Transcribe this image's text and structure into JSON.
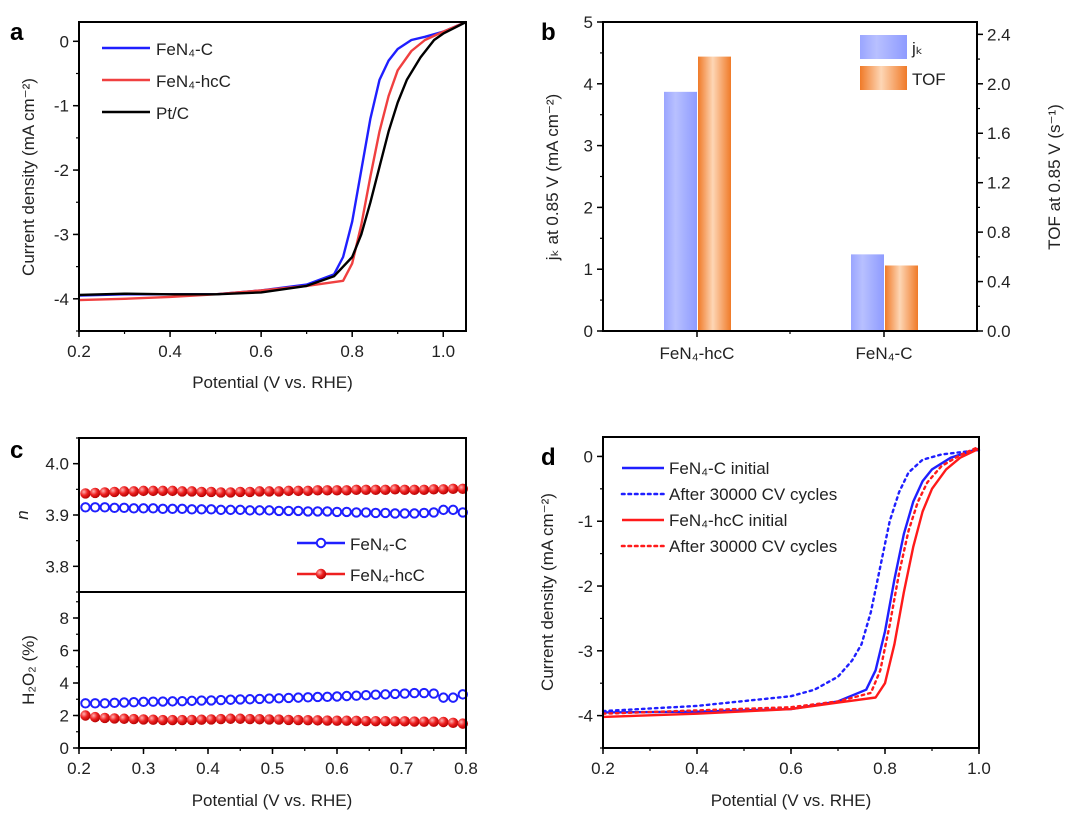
{
  "chart_data": [
    {
      "panel": "a",
      "type": "line",
      "xlabel": "Potential (V vs. RHE)",
      "ylabel": "Current density (mA cm⁻²)",
      "xlim": [
        0.2,
        1.05
      ],
      "ylim": [
        -4.5,
        0.3
      ],
      "xticks": [
        "0.2",
        "0.4",
        "0.6",
        "0.8",
        "1.0"
      ],
      "yticks": [
        "0",
        "-1",
        "-2",
        "-3",
        "-4"
      ],
      "legend_position": "top-left",
      "series": [
        {
          "name": "FeN₄-C",
          "color": "#1f1fff",
          "style": "solid",
          "x": [
            0.2,
            0.3,
            0.4,
            0.5,
            0.6,
            0.7,
            0.76,
            0.78,
            0.8,
            0.82,
            0.84,
            0.86,
            0.88,
            0.9,
            0.93,
            0.96,
            1.0,
            1.05
          ],
          "y": [
            -3.95,
            -3.93,
            -3.93,
            -3.93,
            -3.87,
            -3.78,
            -3.62,
            -3.35,
            -2.8,
            -2.0,
            -1.2,
            -0.6,
            -0.3,
            -0.12,
            0.02,
            0.07,
            0.15,
            0.3
          ]
        },
        {
          "name": "FeN₄-hcC",
          "color": "#f04040",
          "style": "solid",
          "x": [
            0.2,
            0.3,
            0.4,
            0.5,
            0.6,
            0.7,
            0.78,
            0.8,
            0.82,
            0.84,
            0.86,
            0.88,
            0.9,
            0.93,
            0.96,
            1.0,
            1.05
          ],
          "y": [
            -4.02,
            -4.0,
            -3.97,
            -3.93,
            -3.87,
            -3.8,
            -3.72,
            -3.45,
            -2.85,
            -2.1,
            -1.4,
            -0.85,
            -0.45,
            -0.15,
            0.02,
            0.15,
            0.3
          ]
        },
        {
          "name": "Pt/C",
          "color": "#000000",
          "style": "solid",
          "x": [
            0.2,
            0.3,
            0.4,
            0.5,
            0.6,
            0.7,
            0.76,
            0.8,
            0.82,
            0.84,
            0.86,
            0.88,
            0.9,
            0.92,
            0.95,
            0.98,
            1.0,
            1.05
          ],
          "y": [
            -3.94,
            -3.92,
            -3.93,
            -3.93,
            -3.9,
            -3.8,
            -3.65,
            -3.35,
            -3.0,
            -2.5,
            -1.95,
            -1.4,
            -0.95,
            -0.6,
            -0.25,
            0.02,
            0.12,
            0.3
          ]
        }
      ]
    },
    {
      "panel": "b",
      "type": "bar",
      "categories": [
        "FeN₄-hcC",
        "FeN₄-C"
      ],
      "ylabel": "jₖ at 0.85 V (mA cm⁻²)",
      "y2label": "TOF at 0.85 V (s⁻¹)",
      "ylim": [
        0,
        5
      ],
      "y2lim": [
        0,
        2.5
      ],
      "yticks": [
        "0",
        "1",
        "2",
        "3",
        "4",
        "5"
      ],
      "y2ticks": [
        "0.0",
        "0.4",
        "0.8",
        "1.2",
        "1.6",
        "2.0",
        "2.4"
      ],
      "legend_position": "top-right",
      "series": [
        {
          "name": "jₖ",
          "axis": "left",
          "color": "#a3acff",
          "values": [
            3.87,
            1.24
          ]
        },
        {
          "name": "TOF",
          "axis": "right",
          "color": "#f5883a",
          "values": [
            2.22,
            0.53
          ]
        }
      ]
    },
    {
      "panel": "c",
      "type": "scatter",
      "xlabel": "Potential (V vs. RHE)",
      "top": {
        "ylabel": "n",
        "ylim": [
          3.75,
          4.05
        ],
        "yticks": [
          "3.8",
          "3.9",
          "4.0"
        ]
      },
      "bottom": {
        "ylabel": "H₂O₂ (%)",
        "ylim": [
          0,
          9.6
        ],
        "yticks": [
          "0",
          "2",
          "4",
          "6",
          "8"
        ]
      },
      "xlim": [
        0.2,
        0.8
      ],
      "xticks": [
        "0.2",
        "0.3",
        "0.4",
        "0.5",
        "0.6",
        "0.7",
        "0.8"
      ],
      "legend_position": "top-right of lower-right",
      "x_start": 0.21,
      "x_step": 0.015,
      "series": [
        {
          "name": "FeN₄-C",
          "color": "#1f1fff",
          "marker": "open-circle",
          "n": [
            3.915,
            3.915,
            3.915,
            3.914,
            3.914,
            3.913,
            3.913,
            3.913,
            3.912,
            3.912,
            3.912,
            3.911,
            3.911,
            3.911,
            3.91,
            3.91,
            3.91,
            3.909,
            3.909,
            3.909,
            3.908,
            3.908,
            3.908,
            3.907,
            3.907,
            3.907,
            3.906,
            3.906,
            3.905,
            3.905,
            3.904,
            3.904,
            3.903,
            3.903,
            3.903,
            3.904,
            3.905,
            3.91,
            3.91,
            3.905
          ],
          "h2o2": [
            2.75,
            2.75,
            2.75,
            2.78,
            2.8,
            2.82,
            2.84,
            2.85,
            2.86,
            2.87,
            2.88,
            2.9,
            2.92,
            2.93,
            2.95,
            2.97,
            2.99,
            3.0,
            3.02,
            3.04,
            3.06,
            3.08,
            3.1,
            3.12,
            3.14,
            3.15,
            3.17,
            3.2,
            3.22,
            3.25,
            3.28,
            3.3,
            3.33,
            3.35,
            3.38,
            3.38,
            3.35,
            3.1,
            3.1,
            3.3
          ]
        },
        {
          "name": "FeN₄-hcC",
          "color": "#ee2020",
          "marker": "filled-sphere",
          "n": [
            3.942,
            3.943,
            3.944,
            3.945,
            3.946,
            3.946,
            3.947,
            3.947,
            3.947,
            3.947,
            3.946,
            3.946,
            3.945,
            3.945,
            3.944,
            3.944,
            3.945,
            3.945,
            3.946,
            3.946,
            3.946,
            3.947,
            3.947,
            3.947,
            3.948,
            3.948,
            3.948,
            3.948,
            3.949,
            3.949,
            3.949,
            3.949,
            3.95,
            3.949,
            3.949,
            3.949,
            3.95,
            3.95,
            3.951,
            3.951
          ],
          "h2o2": [
            2.0,
            1.9,
            1.85,
            1.82,
            1.8,
            1.78,
            1.76,
            1.74,
            1.72,
            1.72,
            1.72,
            1.73,
            1.74,
            1.76,
            1.78,
            1.8,
            1.8,
            1.78,
            1.77,
            1.76,
            1.75,
            1.73,
            1.72,
            1.71,
            1.7,
            1.69,
            1.68,
            1.68,
            1.67,
            1.66,
            1.65,
            1.65,
            1.64,
            1.64,
            1.63,
            1.62,
            1.62,
            1.6,
            1.55,
            1.5
          ]
        }
      ]
    },
    {
      "panel": "d",
      "type": "line",
      "xlabel": "Potential (V vs. RHE)",
      "ylabel": "Current density (mA cm⁻²)",
      "xlim": [
        0.2,
        1.0
      ],
      "ylim": [
        -4.5,
        0.3
      ],
      "xticks": [
        "0.2",
        "0.4",
        "0.6",
        "0.8",
        "1.0"
      ],
      "yticks": [
        "0",
        "-1",
        "-2",
        "-3",
        "-4"
      ],
      "legend_position": "top-left",
      "series": [
        {
          "name": "FeN₄-C initial",
          "color": "#1f1fff",
          "style": "solid",
          "x": [
            0.2,
            0.4,
            0.6,
            0.7,
            0.76,
            0.78,
            0.8,
            0.82,
            0.84,
            0.86,
            0.88,
            0.9,
            0.94,
            1.0
          ],
          "y": [
            -3.95,
            -3.94,
            -3.9,
            -3.78,
            -3.6,
            -3.3,
            -2.7,
            -1.9,
            -1.2,
            -0.7,
            -0.38,
            -0.2,
            -0.02,
            0.12
          ]
        },
        {
          "name": "After 30000 CV cycles",
          "color": "#1f1fff",
          "style": "dotted",
          "x": [
            0.2,
            0.4,
            0.6,
            0.65,
            0.7,
            0.73,
            0.75,
            0.77,
            0.79,
            0.81,
            0.83,
            0.85,
            0.88,
            0.92,
            1.0
          ],
          "y": [
            -3.93,
            -3.85,
            -3.7,
            -3.6,
            -3.4,
            -3.15,
            -2.9,
            -2.4,
            -1.7,
            -1.0,
            -0.55,
            -0.25,
            -0.05,
            0.03,
            0.1
          ]
        },
        {
          "name": "FeN₄-hcC initial",
          "color": "#ff1a1a",
          "style": "solid",
          "x": [
            0.2,
            0.4,
            0.6,
            0.7,
            0.78,
            0.8,
            0.82,
            0.84,
            0.86,
            0.88,
            0.9,
            0.93,
            0.96,
            1.0
          ],
          "y": [
            -4.02,
            -3.97,
            -3.9,
            -3.8,
            -3.72,
            -3.5,
            -2.9,
            -2.1,
            -1.4,
            -0.85,
            -0.5,
            -0.2,
            -0.02,
            0.12
          ]
        },
        {
          "name": "After 30000 CV cycles",
          "color": "#ff1a1a",
          "style": "dotted",
          "x": [
            0.2,
            0.4,
            0.6,
            0.7,
            0.77,
            0.79,
            0.81,
            0.83,
            0.85,
            0.87,
            0.89,
            0.92,
            0.96,
            1.0
          ],
          "y": [
            -3.97,
            -3.92,
            -3.87,
            -3.78,
            -3.65,
            -3.3,
            -2.6,
            -1.8,
            -1.15,
            -0.7,
            -0.4,
            -0.15,
            0.02,
            0.15
          ]
        }
      ]
    }
  ],
  "panel_letters": [
    "a",
    "b",
    "c",
    "d"
  ]
}
